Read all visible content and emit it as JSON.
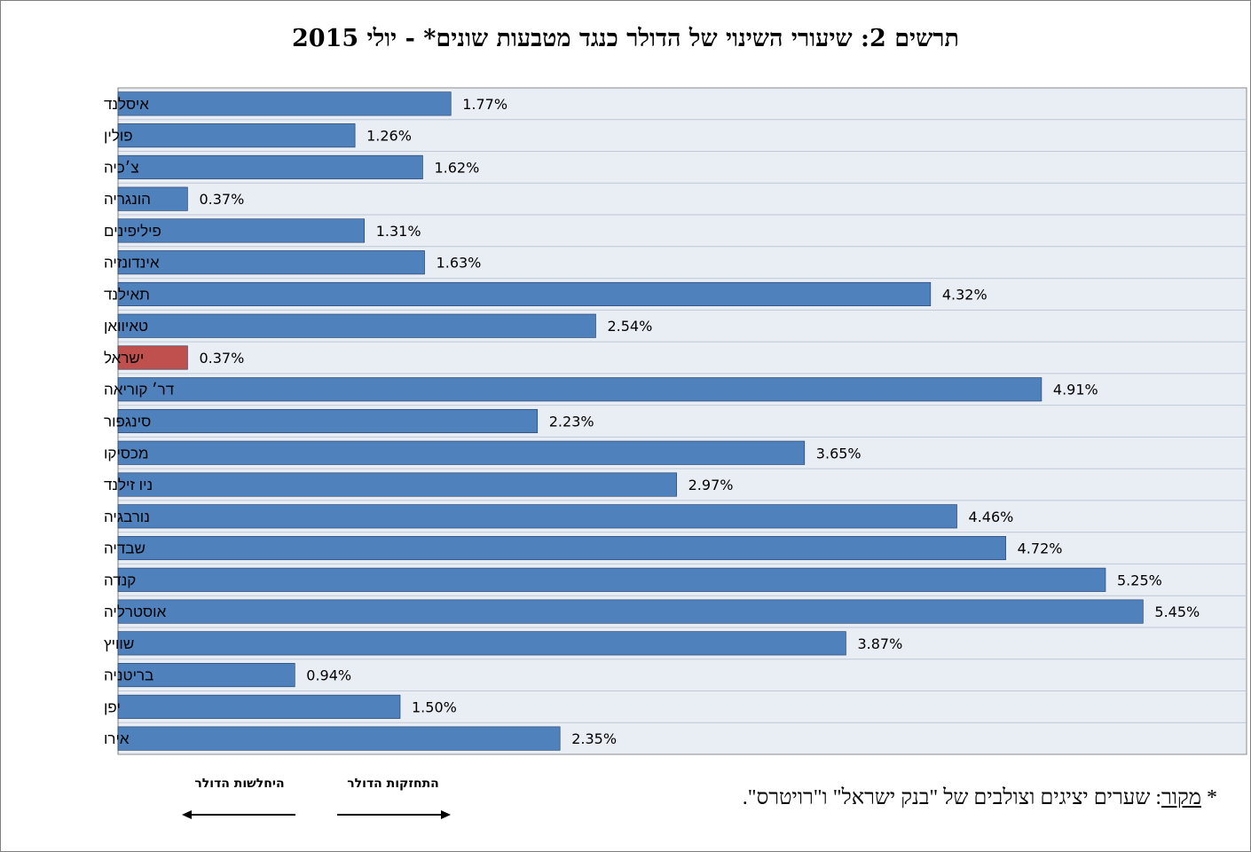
{
  "chart_data": {
    "type": "bar",
    "orientation": "horizontal",
    "title": "תרשים 2: שיעורי השינוי של הדולר כנגד מטבעות שונים* - יולי 2015",
    "categories": [
      "איסלנד",
      "פולין",
      "צ׳כיה",
      "הונגריה",
      "פיליפינים",
      "אינדונזיה",
      "תאילנד",
      "טאיוואן",
      "ישראל",
      "דר׳ קוריאה",
      "סינגפור",
      "מכסיקו",
      "ניו זילנד",
      "נורבגיה",
      "שבדיה",
      "קנדה",
      "אוסטרליה",
      "שוויץ",
      "בריטניה",
      "יפן",
      "אירו"
    ],
    "values": [
      1.77,
      1.26,
      1.62,
      0.37,
      1.31,
      1.63,
      4.32,
      2.54,
      0.37,
      4.91,
      2.23,
      3.65,
      2.97,
      4.46,
      4.72,
      5.25,
      5.45,
      3.87,
      0.94,
      1.5,
      2.35
    ],
    "value_labels": [
      "1.77%",
      "1.26%",
      "1.62%",
      "0.37%",
      "1.31%",
      "1.63%",
      "4.32%",
      "2.54%",
      "0.37%",
      "4.91%",
      "2.23%",
      "3.65%",
      "2.97%",
      "4.46%",
      "4.72%",
      "5.25%",
      "5.45%",
      "3.87%",
      "0.94%",
      "1.50%",
      "2.35%"
    ],
    "highlight_category": "ישראל",
    "xlim": [
      0,
      6.0
    ],
    "xlabel": "",
    "ylabel": "",
    "grid": true,
    "colors": {
      "bar": "#4f81bd",
      "highlight": "#c0504d",
      "plot_bg": "#e9edf4",
      "grid": "#bfc8d6"
    }
  },
  "legend": {
    "strengthening": "התחזקות הדולר",
    "weakening": "היחלשות הדולר"
  },
  "source": {
    "asterisk": "*",
    "label": "מקור",
    "text": ": שערים יציגים וצולבים של \"בנק ישראל\" ו\"רויטרס\"."
  }
}
